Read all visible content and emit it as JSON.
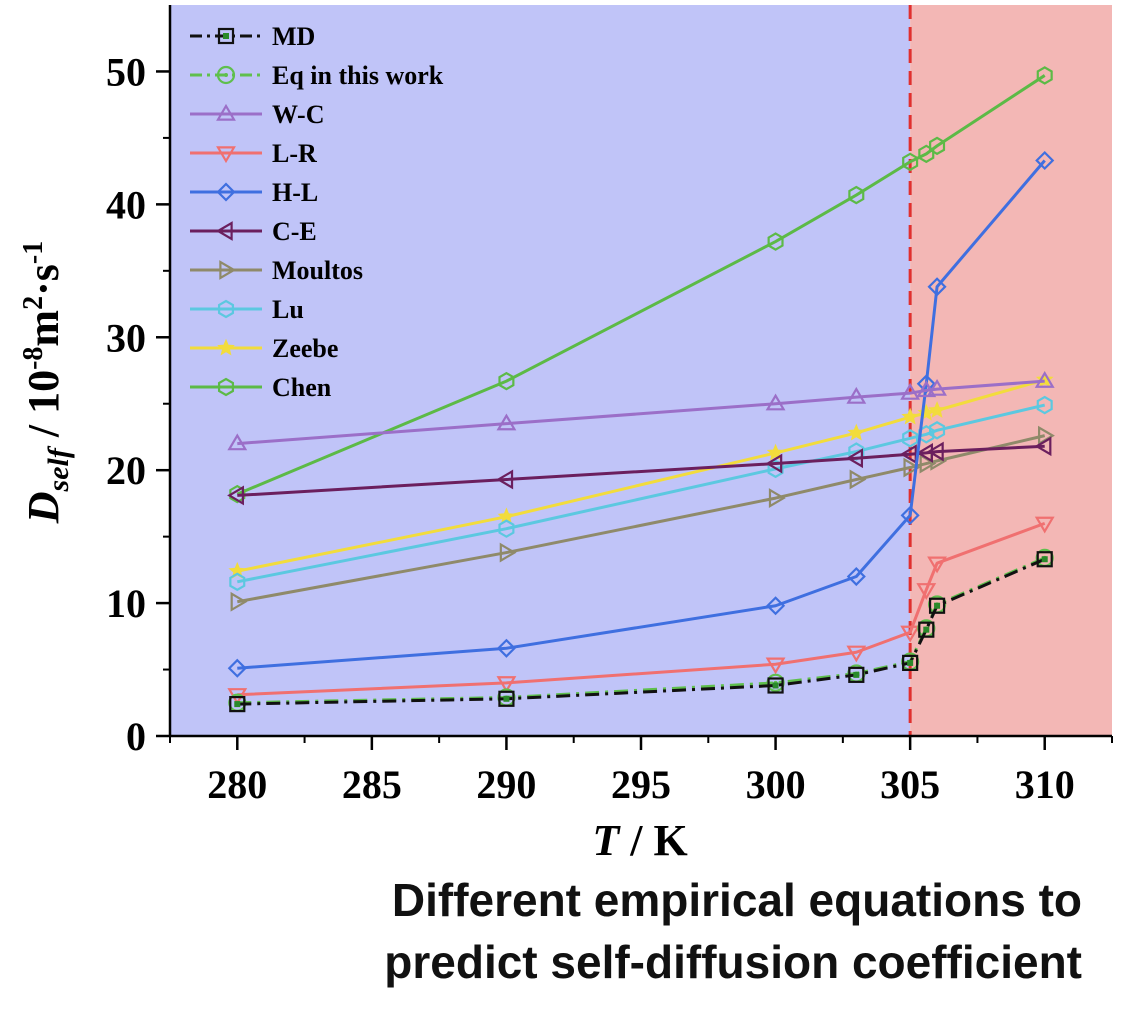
{
  "caption": {
    "line1": "Different empirical equations to",
    "line2": "predict self-diffusion coefficient"
  },
  "chart_data": {
    "type": "line",
    "title": "",
    "xlabel": {
      "italic": "T",
      "rest": " / K"
    },
    "ylabel": {
      "main": "D",
      "sub": "self",
      "rest": " / 10",
      "exp1": "-8",
      "mid": "m",
      "exp2": "2",
      "mid2": "·s",
      "exp3": "-1"
    },
    "xlim": [
      277.5,
      312.5
    ],
    "ylim": [
      0,
      55
    ],
    "xticks": [
      280,
      285,
      290,
      295,
      300,
      305,
      310
    ],
    "yticks": [
      0,
      10,
      20,
      30,
      40,
      50
    ],
    "legend_position": "top-left",
    "regions": [
      {
        "from": 277.5,
        "to": 305,
        "color": "#c0c4f8"
      },
      {
        "from": 305,
        "to": 312.5,
        "color": "#f3b7b5"
      }
    ],
    "threshold_line": {
      "x": 305,
      "color": "#e0302e",
      "style": "dashed"
    },
    "series": [
      {
        "name": "MD",
        "color": "#111111",
        "marker": "square",
        "dash": "dashdot",
        "x": [
          280,
          290,
          300,
          303,
          305,
          305.6,
          306,
          310
        ],
        "y": [
          2.4,
          2.8,
          3.8,
          4.6,
          5.5,
          8.0,
          9.8,
          13.3
        ]
      },
      {
        "name": "Eq in this work",
        "color": "#5fbf4d",
        "marker": "circle-dot",
        "dash": "dashdot",
        "x": [
          280,
          290,
          300,
          303,
          305,
          305.6,
          306,
          310
        ],
        "y": [
          2.5,
          2.9,
          4.0,
          4.7,
          5.6,
          8.1,
          9.9,
          13.4
        ]
      },
      {
        "name": "W-C",
        "color": "#9b6fc8",
        "marker": "triangle-up",
        "dash": "solid",
        "x": [
          280,
          290,
          300,
          303,
          305,
          305.6,
          306,
          310
        ],
        "y": [
          22.0,
          23.5,
          25.0,
          25.5,
          25.8,
          26.0,
          26.1,
          26.7
        ]
      },
      {
        "name": "L-R",
        "color": "#f07070",
        "marker": "triangle-down",
        "dash": "solid",
        "x": [
          280,
          290,
          300,
          303,
          305,
          305.6,
          306,
          310
        ],
        "y": [
          3.1,
          4.0,
          5.4,
          6.3,
          7.8,
          11.0,
          13.0,
          16.0
        ]
      },
      {
        "name": "H-L",
        "color": "#3f6fe0",
        "marker": "diamond",
        "dash": "solid",
        "x": [
          280,
          290,
          300,
          303,
          305,
          305.6,
          306,
          310
        ],
        "y": [
          5.1,
          6.6,
          9.8,
          12.0,
          16.6,
          26.5,
          33.8,
          43.3
        ]
      },
      {
        "name": "C-E",
        "color": "#6b1f5e",
        "marker": "triangle-left",
        "dash": "solid",
        "x": [
          280,
          290,
          300,
          303,
          305,
          305.6,
          306,
          310
        ],
        "y": [
          18.1,
          19.3,
          20.5,
          20.9,
          21.2,
          21.3,
          21.4,
          21.8
        ]
      },
      {
        "name": "Moultos",
        "color": "#8f8a6a",
        "marker": "triangle-right",
        "dash": "solid",
        "x": [
          280,
          290,
          300,
          303,
          305,
          305.6,
          306,
          310
        ],
        "y": [
          10.1,
          13.8,
          17.9,
          19.3,
          20.2,
          20.5,
          20.7,
          22.6
        ]
      },
      {
        "name": "Lu",
        "color": "#5cc8e0",
        "marker": "hexagon",
        "dash": "solid",
        "x": [
          280,
          290,
          300,
          303,
          305,
          305.6,
          306,
          310
        ],
        "y": [
          11.6,
          15.6,
          20.1,
          21.4,
          22.4,
          22.7,
          23.0,
          24.9
        ]
      },
      {
        "name": "Zeebe",
        "color": "#f2dc3c",
        "marker": "star",
        "dash": "solid",
        "x": [
          280,
          290,
          300,
          303,
          305,
          305.6,
          306,
          310
        ],
        "y": [
          12.4,
          16.5,
          21.3,
          22.8,
          24.0,
          24.3,
          24.5,
          26.8
        ]
      },
      {
        "name": "Chen",
        "color": "#5cba46",
        "marker": "hexagon",
        "dash": "solid",
        "x": [
          280,
          290,
          300,
          303,
          305,
          305.6,
          306,
          310
        ],
        "y": [
          18.2,
          26.7,
          37.2,
          40.7,
          43.2,
          43.8,
          44.4,
          49.7
        ]
      }
    ]
  }
}
